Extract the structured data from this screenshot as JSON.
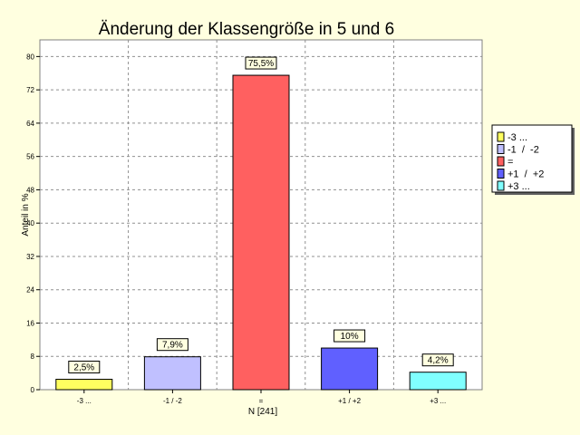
{
  "chart_data": {
    "type": "bar",
    "title": "Änderung der Klassengröße in 5 und 6",
    "xlabel": "N [241]",
    "ylabel": "Anteil in %",
    "ylim": [
      0,
      84
    ],
    "yticks": [
      0,
      8,
      16,
      24,
      32,
      40,
      48,
      56,
      64,
      72,
      80
    ],
    "grid": true,
    "legend_position": "right",
    "categories": [
      "-3 ...",
      "-1 / -2",
      "=",
      "+1 / +2",
      "+3 ..."
    ],
    "values": [
      2.5,
      7.9,
      75.5,
      10,
      4.2
    ],
    "data_labels": [
      "2,5%",
      "7,9%",
      "75,5%",
      "10%",
      "4,2%"
    ],
    "colors": [
      "#ffff60",
      "#c0c0ff",
      "#ff6060",
      "#6060ff",
      "#80ffff"
    ],
    "legend": [
      "-3 ...",
      "-1  /  -2",
      "=",
      "+1  /  +2",
      "+3 ..."
    ]
  }
}
